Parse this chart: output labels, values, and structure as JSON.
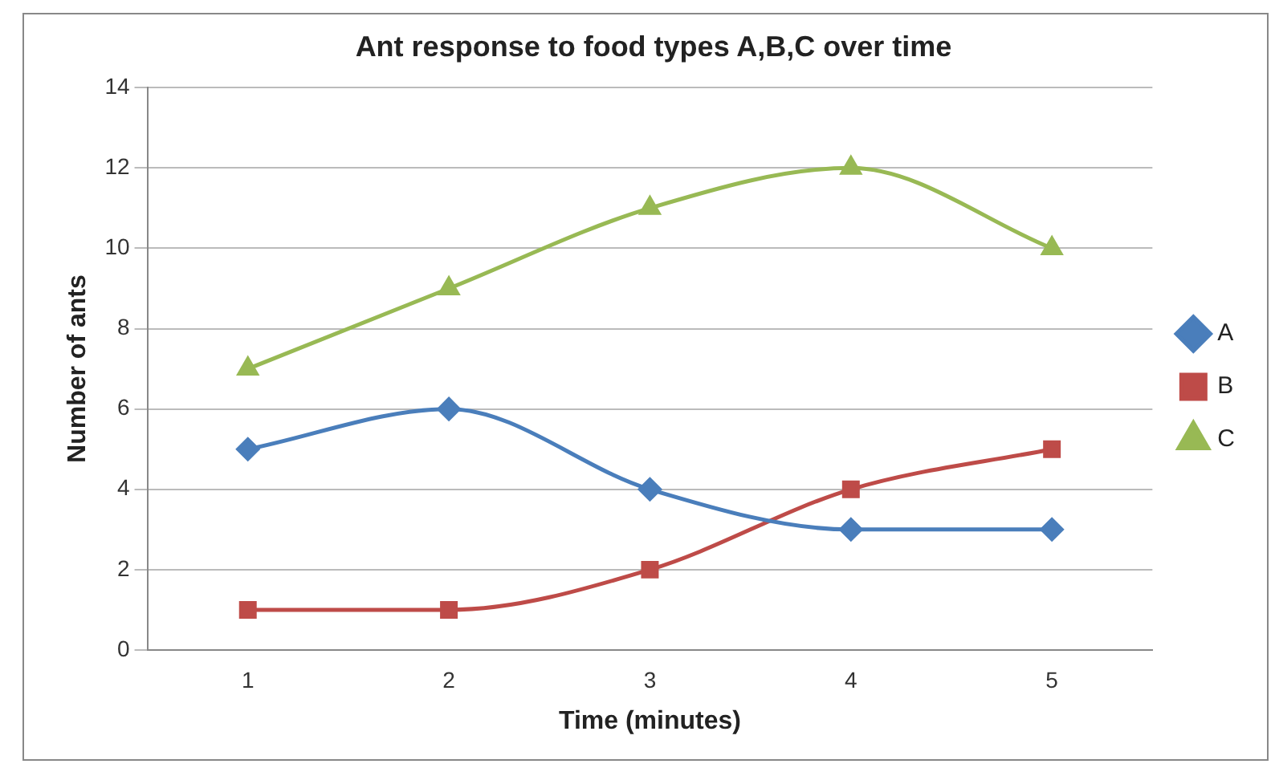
{
  "chart_data": {
    "type": "line",
    "title": "Ant response to food types A,B,C over time",
    "xlabel": "Time (minutes)",
    "ylabel": "Number of ants",
    "categories": [
      "1",
      "2",
      "3",
      "4",
      "5"
    ],
    "series": [
      {
        "name": "A",
        "color": "#4a7ebb",
        "marker": "diamond",
        "values": [
          5,
          6,
          4,
          3,
          3
        ]
      },
      {
        "name": "B",
        "color": "#be4b48",
        "marker": "square",
        "values": [
          1,
          1,
          2,
          4,
          5
        ]
      },
      {
        "name": "C",
        "color": "#98b954",
        "marker": "triangle",
        "values": [
          7,
          9,
          11,
          12,
          10
        ]
      }
    ],
    "ylim": [
      0,
      14
    ],
    "yticks": [
      0,
      2,
      4,
      6,
      8,
      10,
      12,
      14
    ],
    "grid": "y",
    "legend": "right",
    "line_style": "solid"
  }
}
